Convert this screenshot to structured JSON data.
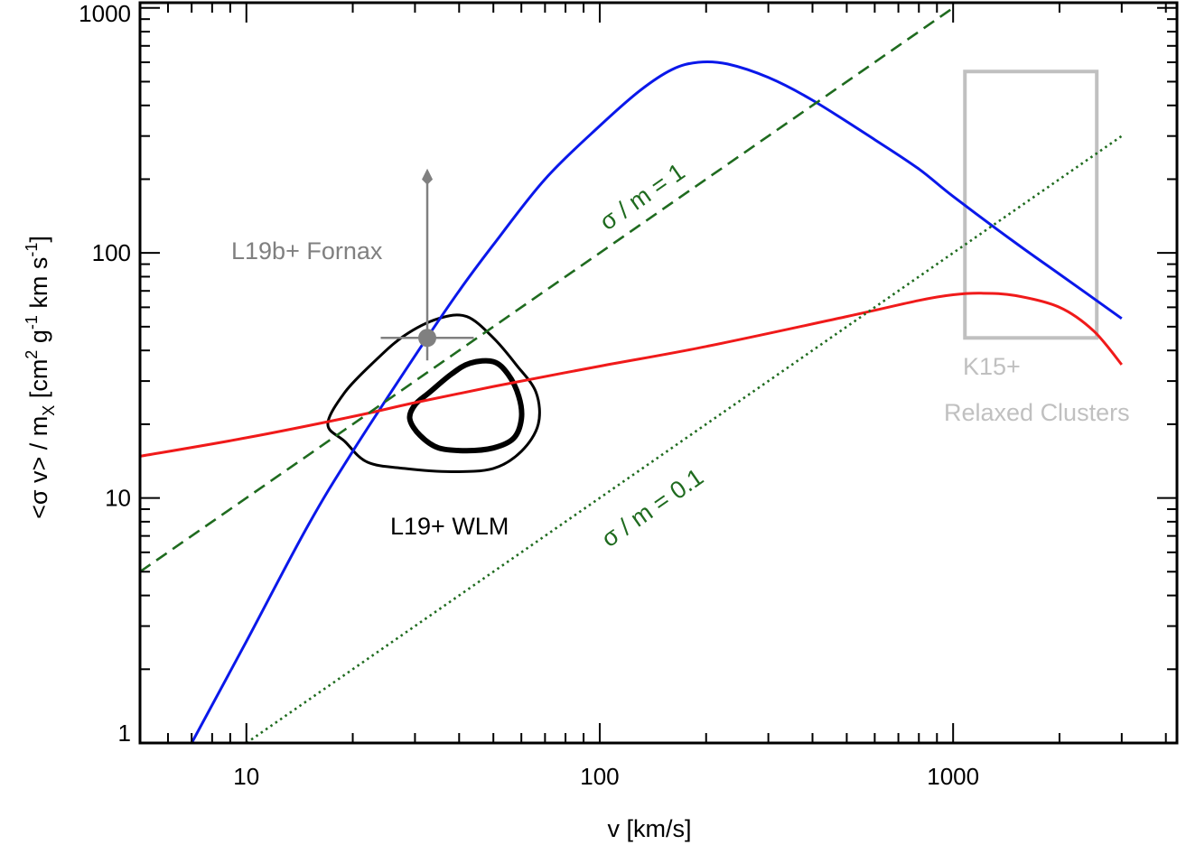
{
  "chart_data": {
    "type": "line",
    "title": "",
    "xlabel": "v  [km/s]",
    "ylabel": {
      "base": "<σ v> / m",
      "sub": "X",
      "unit_open": "[cm",
      "unit_sup1": "2",
      "unit_mid1": " g",
      "unit_sup2": "-1",
      "unit_mid2": " km s",
      "unit_sup3": "-1",
      "unit_close": "]"
    },
    "x_scale": "log",
    "y_scale": "log",
    "xlim": [
      5,
      4300
    ],
    "ylim": [
      1,
      1050
    ],
    "x_ticks": [
      {
        "value": 10,
        "label": "10"
      },
      {
        "value": 100,
        "label": "100"
      },
      {
        "value": 1000,
        "label": "1000"
      }
    ],
    "y_ticks": [
      {
        "value": 1,
        "label": "1"
      },
      {
        "value": 10,
        "label": "10"
      },
      {
        "value": 100,
        "label": "100"
      },
      {
        "value": 1000,
        "label": "1000"
      }
    ],
    "grid": false,
    "colors": {
      "blue": "#0a18ea",
      "red": "#f01a1a",
      "green": "#1f6b1f",
      "data_point": "#808080",
      "clusters": "#c0c0c0",
      "contour": "#000000"
    },
    "series": [
      {
        "style": "solid",
        "color": "blue",
        "x": [
          7,
          10,
          15,
          20,
          30,
          40,
          50,
          70,
          100,
          130,
          160,
          190,
          230,
          300,
          400,
          600,
          800,
          1000,
          1500,
          2000,
          3000
        ],
        "y": [
          1.0,
          2.6,
          7.8,
          15.5,
          38,
          70,
          108,
          200,
          330,
          460,
          560,
          600,
          590,
          520,
          420,
          290,
          220,
          170,
          110,
          82,
          54
        ]
      },
      {
        "style": "solid",
        "color": "red",
        "x": [
          5,
          10,
          20,
          30,
          50,
          100,
          200,
          500,
          800,
          1000,
          1200,
          1500,
          2000,
          2500,
          3000
        ],
        "y": [
          14.8,
          17.6,
          21.5,
          24.5,
          28.5,
          34.5,
          41.5,
          55,
          64,
          67.5,
          68.5,
          67,
          60,
          48,
          35
        ]
      },
      {
        "style": "dashed",
        "color": "green",
        "label": "σ / m = 1",
        "x": [
          5,
          1000
        ],
        "y": [
          5,
          1000
        ]
      },
      {
        "style": "dotted",
        "color": "green",
        "label": "σ / m = 0.1",
        "x": [
          10,
          3000
        ],
        "y": [
          1,
          300
        ]
      }
    ],
    "annotations": {
      "fornax": {
        "label": "L19b+ Fornax",
        "x": 32.5,
        "y": 45,
        "x_err": [
          24,
          44
        ],
        "y_arrow_top": 210
      },
      "wlm": {
        "label": "L19+ WLM",
        "outer_contour": [
          [
            17,
            20
          ],
          [
            19,
            17
          ],
          [
            22,
            14
          ],
          [
            28,
            13.2
          ],
          [
            38,
            12.8
          ],
          [
            50,
            13.2
          ],
          [
            60,
            15.5
          ],
          [
            67,
            20
          ],
          [
            66,
            27
          ],
          [
            58,
            35
          ],
          [
            50,
            45
          ],
          [
            42,
            55
          ],
          [
            35,
            54
          ],
          [
            28,
            46
          ],
          [
            23,
            36
          ],
          [
            19,
            27
          ]
        ],
        "inner_contour": [
          [
            29,
            21
          ],
          [
            31,
            18
          ],
          [
            35,
            16
          ],
          [
            42,
            15.6
          ],
          [
            50,
            16
          ],
          [
            57,
            17.5
          ],
          [
            60,
            21
          ],
          [
            59,
            26
          ],
          [
            55,
            32
          ],
          [
            50,
            36
          ],
          [
            43,
            35.5
          ],
          [
            38,
            32
          ],
          [
            33,
            27
          ],
          [
            30,
            24
          ]
        ]
      },
      "clusters": {
        "label_line1": "K15+",
        "label_line2": "Relaxed Clusters",
        "x_range": [
          1080,
          2550
        ],
        "y_range": [
          45,
          550
        ]
      }
    }
  }
}
